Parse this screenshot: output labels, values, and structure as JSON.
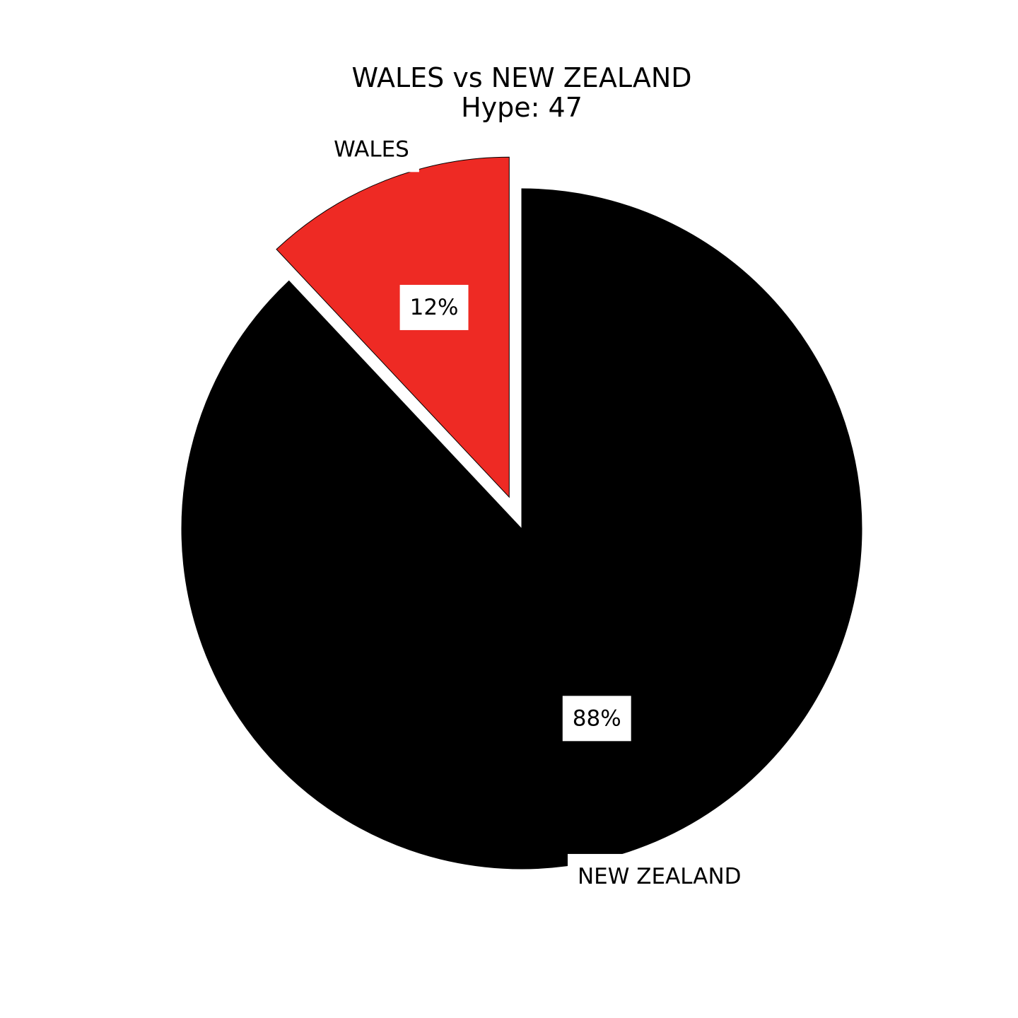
{
  "chart_data": {
    "type": "pie",
    "title": "WALES vs NEW ZEALAND",
    "subtitle": "Hype: 47",
    "categories": [
      "WALES",
      "NEW ZEALAND"
    ],
    "values": [
      12,
      88
    ],
    "value_labels": [
      "12%",
      "88%"
    ],
    "colors": [
      "#ee2a24",
      "#000000"
    ],
    "exploded": [
      "WALES"
    ],
    "start_angle": "top (12 o'clock)",
    "direction": "counter-clockwise",
    "legend": "none"
  }
}
